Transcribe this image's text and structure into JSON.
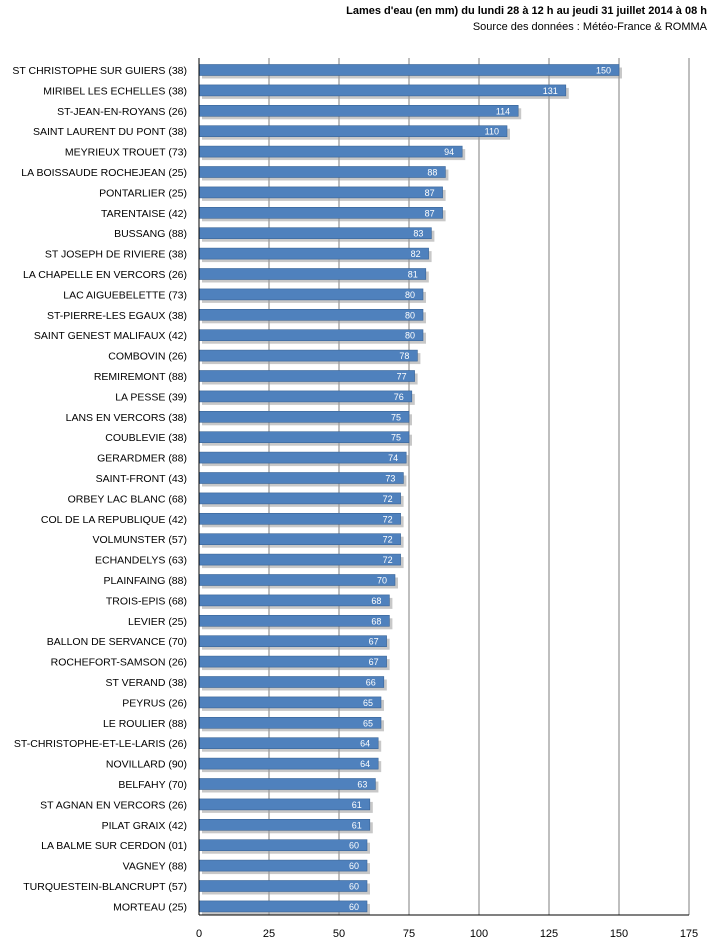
{
  "chart_data": {
    "type": "bar",
    "orientation": "horizontal",
    "title": "Lames d'eau (en mm) du lundi 28 à 12 h au jeudi 31 juillet 2014 à 08 h",
    "subtitle": "Source des données : Météo-France & ROMMA",
    "categories": [
      "ST CHRISTOPHE SUR GUIERS (38)",
      "MIRIBEL LES ECHELLES (38)",
      "ST-JEAN-EN-ROYANS (26)",
      "SAINT LAURENT DU PONT (38)",
      "MEYRIEUX TROUET (73)",
      "LA BOISSAUDE ROCHEJEAN (25)",
      "PONTARLIER (25)",
      "TARENTAISE (42)",
      "BUSSANG (88)",
      "ST JOSEPH DE RIVIERE (38)",
      "LA CHAPELLE EN VERCORS (26)",
      "LAC AIGUEBELETTE (73)",
      "ST-PIERRE-LES EGAUX (38)",
      "SAINT GENEST MALIFAUX (42)",
      "COMBOVIN (26)",
      "REMIREMONT (88)",
      "LA PESSE (39)",
      "LANS EN VERCORS (38)",
      "COUBLEVIE (38)",
      "GERARDMER (88)",
      "SAINT-FRONT (43)",
      "ORBEY LAC BLANC (68)",
      "COL DE LA REPUBLIQUE (42)",
      "VOLMUNSTER (57)",
      "ECHANDELYS (63)",
      "PLAINFAING (88)",
      "TROIS-EPIS (68)",
      "LEVIER (25)",
      "BALLON DE SERVANCE (70)",
      "ROCHEFORT-SAMSON (26)",
      "ST VERAND (38)",
      "PEYRUS (26)",
      "LE ROULIER (88)",
      "ST-CHRISTOPHE-ET-LE-LARIS (26)",
      "NOVILLARD (90)",
      "BELFAHY (70)",
      "ST AGNAN EN VERCORS (26)",
      "PILAT GRAIX (42)",
      "LA BALME SUR CERDON (01)",
      "VAGNEY (88)",
      "TURQUESTEIN-BLANCRUPT (57)",
      "MORTEAU (25)"
    ],
    "values": [
      150,
      131,
      114,
      110,
      94,
      88,
      87,
      87,
      83,
      82,
      81,
      80,
      80,
      80,
      78,
      77,
      76,
      75,
      75,
      74,
      73,
      72,
      72,
      72,
      72,
      70,
      68,
      68,
      67,
      67,
      66,
      65,
      65,
      64,
      64,
      63,
      61,
      61,
      60,
      60,
      60,
      60
    ],
    "xlim": [
      0,
      175
    ],
    "xticks": [
      "0",
      "25",
      "50",
      "75",
      "100",
      "125",
      "150",
      "175"
    ],
    "grid": true,
    "colors": {
      "bar": "#4f81bd",
      "bar_border": "#3a6496",
      "shadow": "#9a9a9a",
      "grid": "#7f7f7f",
      "axis": "#000000"
    }
  }
}
